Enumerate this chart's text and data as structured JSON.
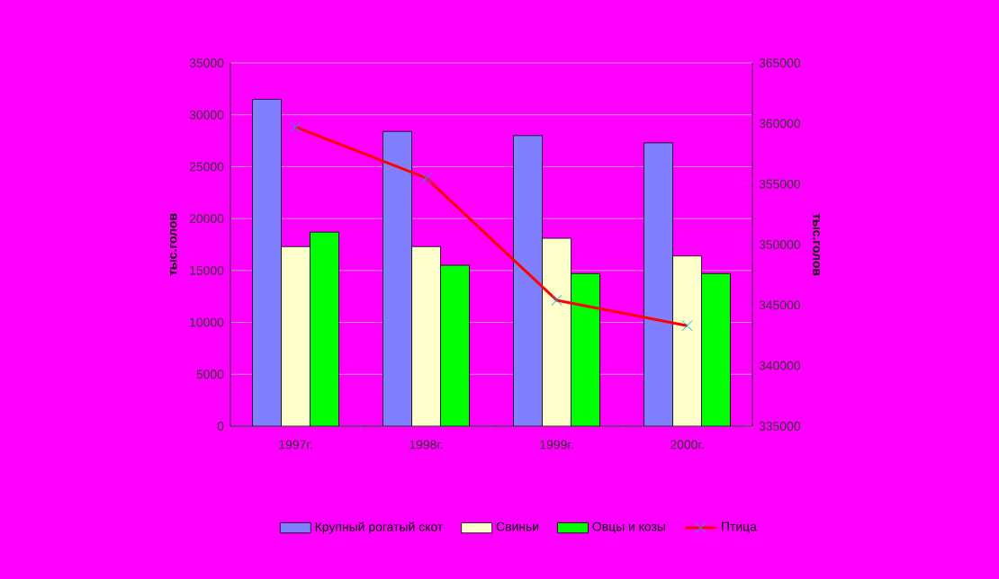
{
  "chart_data": {
    "type": "bar",
    "categories": [
      "1997г.",
      "1998г.",
      "1999г.",
      "2000г."
    ],
    "series": [
      {
        "name": "Крупный рогатый скот",
        "color": "#8080ff",
        "values": [
          31500,
          28400,
          28000,
          27300
        ]
      },
      {
        "name": "Свиньи",
        "color": "#ffffcc",
        "values": [
          17300,
          17300,
          18100,
          16400
        ]
      },
      {
        "name": "Овцы и козы",
        "color": "#00ff00",
        "values": [
          18700,
          15500,
          14700,
          14700
        ]
      },
      {
        "name": "Птица",
        "color": "#ff0000",
        "type": "line",
        "axis": "y2",
        "marker": "cross",
        "values": [
          359700,
          355500,
          345400,
          343300
        ]
      }
    ],
    "ylabel": "тыс.голов",
    "y2label": "тыс.голов",
    "ylim": [
      0,
      35000
    ],
    "yticks": [
      0,
      5000,
      10000,
      15000,
      20000,
      25000,
      30000,
      35000
    ],
    "y2lim": [
      335000,
      365000
    ],
    "y2ticks": [
      335000,
      340000,
      345000,
      350000,
      355000,
      360000,
      365000
    ],
    "grid": "y",
    "legend": "bottom"
  }
}
